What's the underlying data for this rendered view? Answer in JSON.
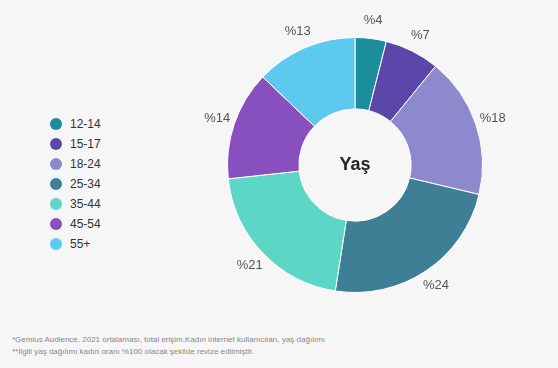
{
  "chart_data": {
    "type": "doughnut",
    "title": "Yaş",
    "categories": [
      "12-14",
      "15-17",
      "18-24",
      "25-34",
      "35-44",
      "45-54",
      "55+"
    ],
    "values": [
      4,
      7,
      18,
      24,
      21,
      14,
      13
    ],
    "value_labels": [
      "%4",
      "%7",
      "%18",
      "%24",
      "%21",
      "%14",
      "%13"
    ],
    "colors": [
      "#1b8d9c",
      "#5a47a9",
      "#8e88cc",
      "#3f7f95",
      "#5cd6c5",
      "#8750be",
      "#5ec9ef"
    ],
    "data_labels": true,
    "legend": "left",
    "annotations": [
      "*Gemius Audience, 2021 ortalaması, total erişim,Kadın internet kullanıcıları, yaş dağılımı",
      "**İlgili yaş dağılımı kadın oranı %100 olacak şekilde revize edilmiştir."
    ]
  }
}
